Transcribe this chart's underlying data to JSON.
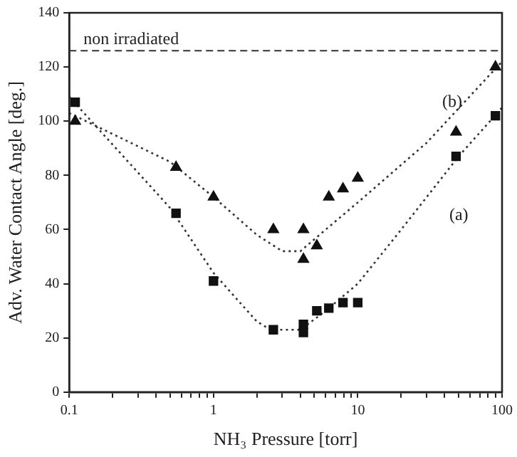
{
  "chart_data": {
    "type": "scatter",
    "xlabel": "NH₃ Pressure [torr]",
    "ylabel": "Adv. Water Contact Angle [deg.]",
    "log": "x",
    "xlim": [
      0.1,
      100
    ],
    "ylim": [
      0,
      140
    ],
    "xticks": [
      0.1,
      {
        "value": 0.2,
        "label": null
      },
      {
        "value": 0.3,
        "label": null
      },
      {
        "value": 0.4,
        "label": null
      },
      {
        "value": 0.5,
        "label": null
      },
      {
        "value": 0.6,
        "label": null
      },
      {
        "value": 0.7,
        "label": null
      },
      {
        "value": 0.8,
        "label": null
      },
      {
        "value": 0.9,
        "label": null
      },
      1,
      {
        "value": 2,
        "label": null
      },
      {
        "value": 3,
        "label": null
      },
      {
        "value": 4,
        "label": null
      },
      {
        "value": 5,
        "label": null
      },
      {
        "value": 6,
        "label": null
      },
      {
        "value": 7,
        "label": null
      },
      {
        "value": 8,
        "label": null
      },
      {
        "value": 9,
        "label": null
      },
      10,
      {
        "value": 20,
        "label": null
      },
      {
        "value": 30,
        "label": null
      },
      {
        "value": 40,
        "label": null
      },
      {
        "value": 50,
        "label": null
      },
      {
        "value": 60,
        "label": null
      },
      {
        "value": 70,
        "label": null
      },
      {
        "value": 80,
        "label": null
      },
      {
        "value": 90,
        "label": null
      },
      100
    ],
    "yticks": [
      0,
      20,
      40,
      60,
      80,
      100,
      120,
      140
    ],
    "grid": false,
    "legend": false,
    "series": [
      {
        "marker": "square",
        "color": "#111111",
        "x": [
          0.11,
          0.55,
          1,
          2.6,
          4.2,
          4.2,
          5.2,
          6.3,
          7.9,
          10,
          48,
          90
        ],
        "values": [
          107,
          66,
          41,
          23,
          25,
          22,
          30,
          31,
          33,
          33,
          87,
          102
        ]
      },
      {
        "marker": "triangle",
        "color": "#111111",
        "x": [
          0.11,
          0.55,
          1,
          2.6,
          4.2,
          4.2,
          5.2,
          6.3,
          7.9,
          10,
          48,
          90
        ],
        "values": [
          100,
          83,
          72,
          60,
          60,
          49,
          54,
          72,
          75,
          79,
          96,
          120
        ]
      },
      {
        "type": "line",
        "marker": "none",
        "line_style": "dotted",
        "color": "#333333",
        "x": [
          0.1,
          0.5,
          1,
          2,
          2.5,
          4,
          6,
          10,
          20,
          50,
          100
        ],
        "values": [
          109,
          68,
          44,
          26,
          23,
          23,
          30,
          40,
          60,
          87,
          105
        ]
      },
      {
        "type": "line",
        "marker": "none",
        "line_style": "dotted",
        "color": "#333333",
        "x": [
          0.1,
          0.5,
          1,
          2,
          3,
          4,
          6,
          10,
          30,
          100
        ],
        "values": [
          103,
          85,
          72,
          58,
          52,
          52,
          60,
          70,
          92,
          122
        ]
      }
    ],
    "ref_lines": [
      {
        "axis": "y",
        "value": 126,
        "label": "non irradiated",
        "line_style": "dashed",
        "color": "#333333"
      }
    ],
    "annotations": [
      "(a)",
      "(b)"
    ]
  }
}
